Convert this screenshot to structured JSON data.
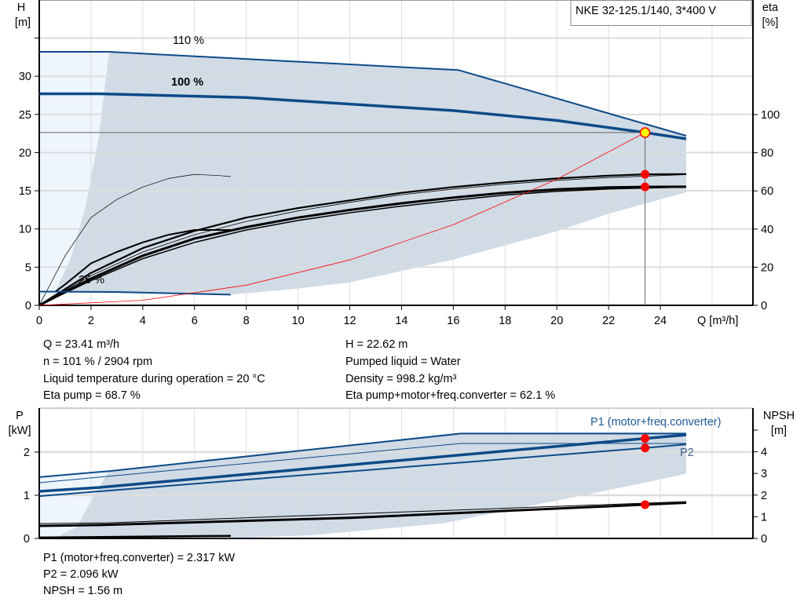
{
  "colors": {
    "curve_blue": "#0d4a87",
    "shade": "#d0dbe6",
    "shade_light": "#eef5fc",
    "system_curve": "#ff0000",
    "duty_point": "#ffff00",
    "marker": "#ff0000",
    "grid": "#dddddd"
  },
  "title": "NKE 32-125.1/140, 3*400 V",
  "chart_data": [
    {
      "type": "line",
      "xlabel": "Q [m³/h]",
      "ylabel_left": [
        "H",
        "[m]"
      ],
      "ylabel_right": [
        "eta",
        "[%]"
      ],
      "xlim": [
        0,
        27.5
      ],
      "ylim_left": [
        0,
        40
      ],
      "ylim_right": [
        0,
        160
      ],
      "x_ticks": [
        "0",
        "2",
        "4",
        "6",
        "8",
        "10",
        "12",
        "14",
        "16",
        "18",
        "20",
        "22",
        "24"
      ],
      "y_ticks_left": [
        "0",
        "5",
        "10",
        "15",
        "20",
        "25",
        "30"
      ],
      "y_ticks_right": [
        "0",
        "20",
        "40",
        "60",
        "80",
        "100"
      ],
      "grid": true,
      "curve_labels": {
        "speed_110": "110 %",
        "speed_100": "100 %",
        "speed_25": "25 %"
      },
      "operating_range": {
        "upper_H": [
          [
            2.7,
            33.2
          ],
          [
            16.2,
            30.8
          ],
          [
            25,
            22.2
          ]
        ],
        "lower_H": [
          [
            25,
            14.8
          ],
          [
            22,
            12
          ],
          [
            20,
            9.7
          ],
          [
            16,
            6
          ],
          [
            12,
            3
          ],
          [
            10,
            2.2
          ],
          [
            7.4,
            1.4
          ],
          [
            0.6,
            1.7
          ]
        ],
        "left_edge_H": [
          [
            0.6,
            1.7
          ],
          [
            1.2,
            6
          ],
          [
            1.8,
            13
          ],
          [
            2.3,
            22
          ],
          [
            2.7,
            33.2
          ]
        ]
      },
      "series_H": [
        {
          "id": "h110",
          "width": 2,
          "points": [
            [
              0,
              33.2
            ],
            [
              2.7,
              33.2
            ],
            [
              16.2,
              30.8
            ],
            [
              25,
              22.2
            ]
          ]
        },
        {
          "id": "h100",
          "width": 3.5,
          "points": [
            [
              0,
              27.7
            ],
            [
              2.3,
              27.7
            ],
            [
              8,
              27.2
            ],
            [
              16,
              25.5
            ],
            [
              20,
              24.2
            ],
            [
              23.41,
              22.62
            ],
            [
              25,
              21.8
            ]
          ]
        },
        {
          "id": "h25",
          "width": 2,
          "points": [
            [
              0,
              1.8
            ],
            [
              3,
              1.75
            ],
            [
              7.4,
              1.4
            ]
          ]
        },
        {
          "id": "system",
          "width": 0.8,
          "points": [
            [
              0,
              0
            ],
            [
              4,
              0.66
            ],
            [
              8,
              2.64
            ],
            [
              12,
              5.94
            ],
            [
              16,
              10.57
            ],
            [
              20,
              16.51
            ],
            [
              23.41,
              22.62
            ]
          ]
        }
      ],
      "series_eta": [
        {
          "id": "eta_pump_100",
          "width": 2.2,
          "points": [
            [
              0,
              0
            ],
            [
              2,
              17
            ],
            [
              4,
              30
            ],
            [
              6,
              39
            ],
            [
              8,
              46
            ],
            [
              10,
              51
            ],
            [
              12,
              55
            ],
            [
              14,
              59
            ],
            [
              16,
              62
            ],
            [
              18,
              64.5
            ],
            [
              20,
              66.5
            ],
            [
              22,
              68
            ],
            [
              23.41,
              68.7
            ],
            [
              25,
              68.8
            ]
          ]
        },
        {
          "id": "eta_pump_110",
          "width": 0.8,
          "points": [
            [
              0,
              0
            ],
            [
              2,
              15.5
            ],
            [
              4,
              28
            ],
            [
              6,
              37
            ],
            [
              8,
              44
            ],
            [
              10,
              49.5
            ],
            [
              12,
              54
            ],
            [
              14,
              58
            ],
            [
              16,
              61
            ],
            [
              18,
              63.5
            ],
            [
              20,
              65.5
            ],
            [
              22,
              67
            ],
            [
              25,
              68.5
            ]
          ]
        },
        {
          "id": "eta_total_100",
          "width": 3,
          "points": [
            [
              0,
              0
            ],
            [
              2,
              14
            ],
            [
              4,
              26
            ],
            [
              6,
              35
            ],
            [
              8,
              41
            ],
            [
              10,
              46
            ],
            [
              12,
              50
            ],
            [
              14,
              53.5
            ],
            [
              16,
              56.5
            ],
            [
              18,
              59
            ],
            [
              20,
              60.8
            ],
            [
              22,
              61.8
            ],
            [
              23.41,
              62.1
            ],
            [
              25,
              62.2
            ]
          ]
        },
        {
          "id": "eta_total_110",
          "width": 1.5,
          "points": [
            [
              0,
              0
            ],
            [
              2,
              13
            ],
            [
              4,
              24.5
            ],
            [
              6,
              33
            ],
            [
              8,
              39.5
            ],
            [
              10,
              44.5
            ],
            [
              12,
              48.5
            ],
            [
              14,
              52
            ],
            [
              16,
              55
            ],
            [
              18,
              57.8
            ],
            [
              20,
              59.8
            ],
            [
              22,
              61
            ],
            [
              25,
              62
            ]
          ]
        },
        {
          "id": "eta_pump_25",
          "width": 0.7,
          "points": [
            [
              0,
              0
            ],
            [
              1,
              26
            ],
            [
              2,
              46
            ],
            [
              3,
              55.5
            ],
            [
              4,
              62
            ],
            [
              5,
              66.5
            ],
            [
              6,
              68.7
            ],
            [
              7,
              68
            ],
            [
              7.4,
              67.5
            ]
          ]
        },
        {
          "id": "eta_total_25",
          "width": 2,
          "points": [
            [
              0.6,
              7
            ],
            [
              1,
              11
            ],
            [
              2,
              22
            ],
            [
              3,
              28
            ],
            [
              4,
              33
            ],
            [
              5,
              37
            ],
            [
              6,
              39.5
            ],
            [
              7.4,
              39.5
            ]
          ]
        }
      ],
      "duty_point": {
        "Q": 23.41,
        "H": 22.62,
        "eta_pump": 68.7,
        "eta_total": 62.1
      }
    },
    {
      "type": "line",
      "ylabel_left": [
        "P",
        "[kW]"
      ],
      "ylabel_right": [
        "NPSH",
        "[m]"
      ],
      "xlim": [
        0,
        27.5
      ],
      "ylim_left": [
        0,
        3
      ],
      "ylim_right": [
        0,
        6
      ],
      "y_ticks_left": [
        "0",
        "1",
        "2"
      ],
      "y_ticks_right": [
        "0",
        "1",
        "2",
        "3",
        "4"
      ],
      "series_labels": {
        "p1": "P1 (motor+freq.converter)",
        "p2": "P2"
      },
      "operating_range": {
        "polygon_P": [
          [
            2.7,
            1.57
          ],
          [
            16.2,
            2.45
          ],
          [
            25,
            2.45
          ],
          [
            25,
            1.5
          ],
          [
            23,
            1.24
          ],
          [
            15.6,
            0.35
          ],
          [
            10.4,
            0.07
          ],
          [
            7.4,
            0
          ],
          [
            0.6,
            0
          ],
          [
            1.46,
            0.27
          ],
          [
            2.06,
            0.93
          ]
        ]
      },
      "series_P": [
        {
          "id": "p1_110",
          "width": 2,
          "points": [
            [
              0,
              1.42
            ],
            [
              2.7,
              1.56
            ],
            [
              16.3,
              2.43
            ],
            [
              25,
              2.43
            ]
          ]
        },
        {
          "id": "p2_110",
          "width": 1,
          "points": [
            [
              0,
              1.29
            ],
            [
              16.3,
              2.2
            ],
            [
              25,
              2.2
            ]
          ]
        },
        {
          "id": "p1_100",
          "width": 3.5,
          "points": [
            [
              0,
              1.09
            ],
            [
              2.3,
              1.18
            ],
            [
              23.41,
              2.317
            ],
            [
              25,
              2.4
            ]
          ]
        },
        {
          "id": "p2_100",
          "width": 2,
          "points": [
            [
              0,
              0.98
            ],
            [
              23.41,
              2.096
            ],
            [
              25,
              2.18
            ]
          ]
        },
        {
          "id": "p_25",
          "width": 2.5,
          "points": [
            [
              0,
              0.02
            ],
            [
              7.4,
              0.06
            ]
          ]
        }
      ],
      "series_NPSH": [
        {
          "id": "npsh_110",
          "width": 1,
          "points": [
            [
              0,
              0.69
            ],
            [
              2.7,
              0.72
            ],
            [
              25,
              1.7
            ]
          ]
        },
        {
          "id": "npsh_100",
          "width": 3,
          "points": [
            [
              0,
              0.58
            ],
            [
              2.3,
              0.62
            ],
            [
              12,
              0.95
            ],
            [
              23.41,
              1.56
            ],
            [
              25,
              1.65
            ]
          ]
        }
      ],
      "duty_point": {
        "P1": 2.317,
        "P2": 2.096,
        "NPSH": 1.56
      }
    }
  ],
  "results_top": {
    "left": [
      "Q = 23.41 m³/h",
      "n = 101 % / 2904 rpm",
      "Liquid temperature during operation = 20 °C",
      "Eta pump = 68.7 %"
    ],
    "right": [
      "H = 22.62 m",
      "Pumped liquid = Water",
      "Density = 998.2 kg/m³",
      "Eta pump+motor+freq.converter = 62.1 %"
    ]
  },
  "results_bottom": [
    "P1 (motor+freq.converter) = 2.317 kW",
    "P2 = 2.096 kW",
    "NPSH = 1.56 m"
  ]
}
